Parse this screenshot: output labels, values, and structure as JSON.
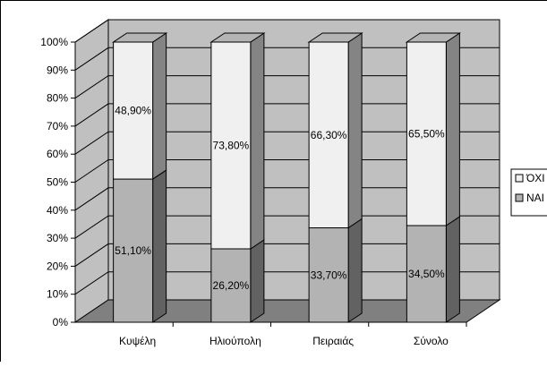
{
  "chart_data": {
    "type": "bar",
    "stacked": true,
    "percent_stacked": true,
    "three_d": true,
    "categories": [
      "Κυψέλη",
      "Ηλιούπολη",
      "Πειραιάς",
      "Σύνολο"
    ],
    "series": [
      {
        "name": "ΝΑΙ",
        "values": [
          51.1,
          26.2,
          33.7,
          34.5
        ],
        "labels": [
          "51,10%",
          "26,20%",
          "33,70%",
          "34,50%"
        ],
        "color": "#b3b3b3"
      },
      {
        "name": "ΌΧΙ",
        "values": [
          48.9,
          73.8,
          66.3,
          65.5
        ],
        "labels": [
          "48,90%",
          "73,80%",
          "66,30%",
          "65,50%"
        ],
        "color": "#f0f0f0"
      }
    ],
    "ylim": [
      0,
      100
    ],
    "yticks": [
      "0%",
      "10%",
      "20%",
      "30%",
      "40%",
      "50%",
      "60%",
      "70%",
      "80%",
      "90%",
      "100%"
    ],
    "grid": true,
    "legend_position": "right",
    "legend": [
      "ΌΧΙ",
      "ΝΑΙ"
    ],
    "title": "",
    "xlabel": "",
    "ylabel": "",
    "colors": {
      "wall": "#c0c0c0",
      "floor": "#808080",
      "grid": "#000000"
    }
  }
}
